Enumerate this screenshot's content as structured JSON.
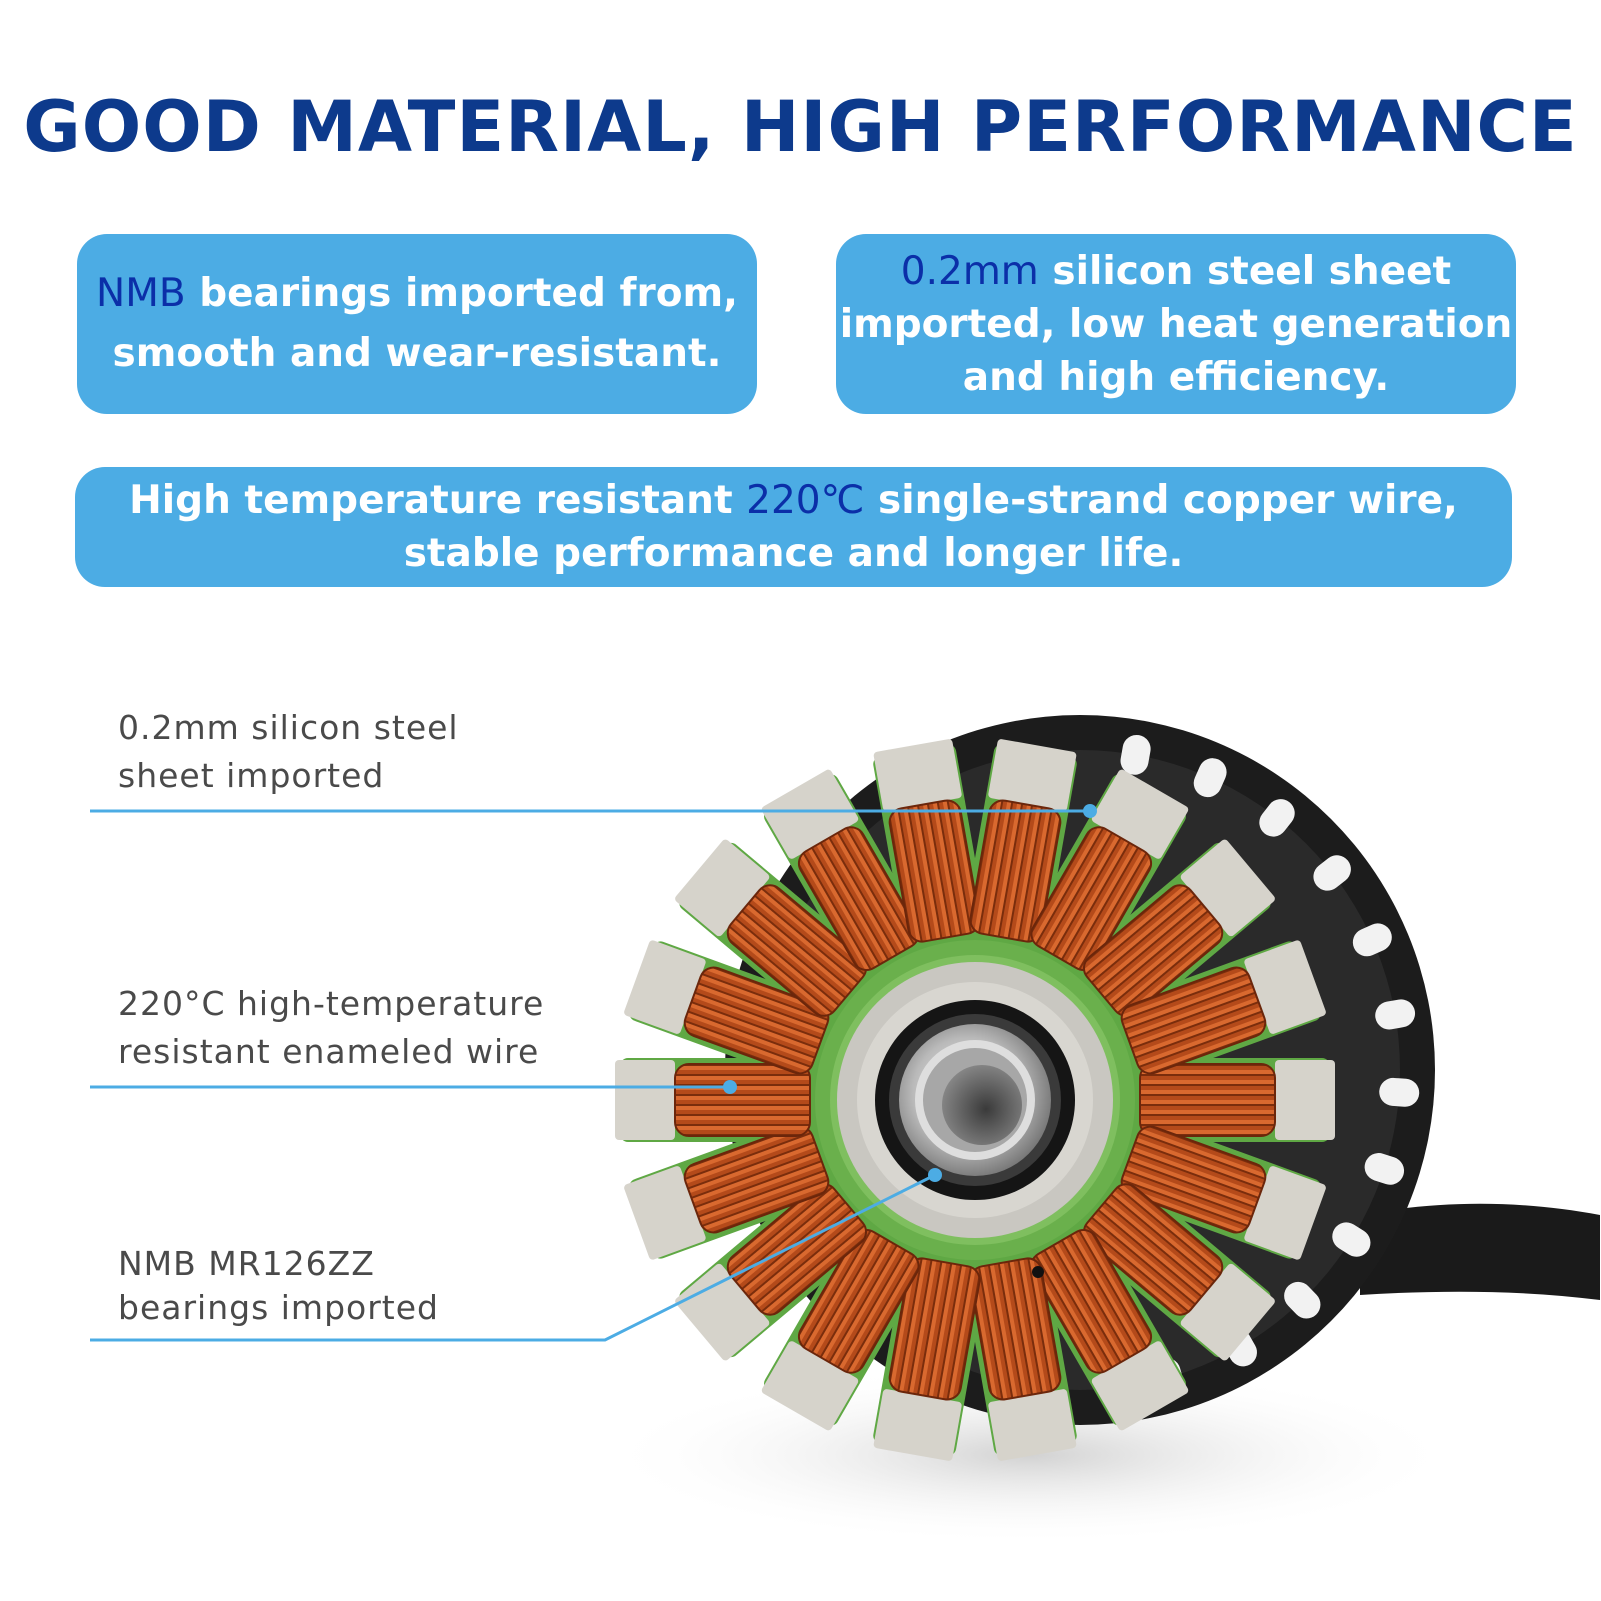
{
  "headline": "GOOD MATERIAL, HIGH PERFORMANCE",
  "colors": {
    "headline": "#0d3a8c",
    "box_background": "#4cace4",
    "highlight": "#0b2fa8",
    "callout_line": "#4cace4",
    "copper": "#c4531f",
    "insulation_green": "#6ab04c"
  },
  "features": {
    "bearings": {
      "highlight": "NMB",
      "line1_rest": " bearings imported from,",
      "line2": "smooth and wear-resistant."
    },
    "steel": {
      "highlight": "0.2mm",
      "line1_rest": " silicon steel sheet",
      "line2": "imported, low heat generation",
      "line3": "and high efficiency."
    },
    "wire": {
      "line1_start": "High temperature resistant ",
      "highlight": "220℃",
      "line1_rest": " single-strand copper wire,",
      "line2": "stable performance and longer life."
    }
  },
  "callouts": {
    "steel": {
      "line1": "0.2mm silicon steel",
      "line2": "sheet imported"
    },
    "wire": {
      "line1": "220°C high-temperature",
      "line2": "resistant enameled wire"
    },
    "bearing": {
      "line1": "NMB MR126ZZ",
      "line2": "bearings imported"
    }
  },
  "image": {
    "subject": "brushless-motor-stator-with-copper-windings"
  }
}
